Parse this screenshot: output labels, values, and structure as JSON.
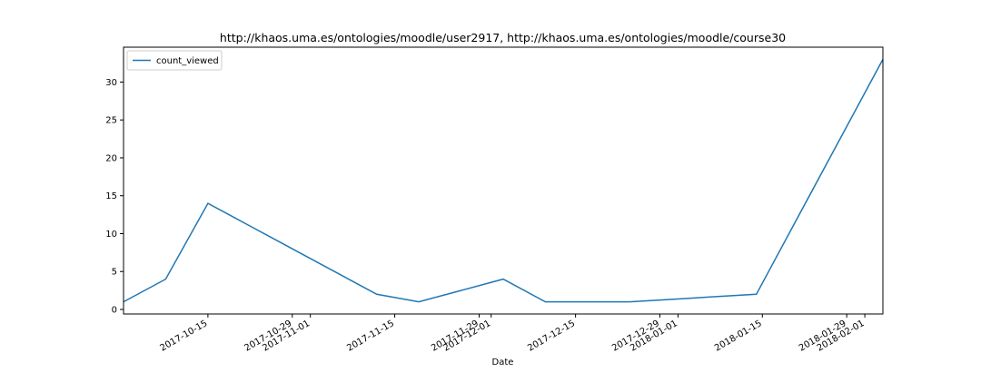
{
  "chart_data": {
    "type": "line",
    "title": "http://khaos.uma.es/ontologies/moodle/user2917, http://khaos.uma.es/ontologies/moodle/course30",
    "xlabel": "Date",
    "ylabel": "",
    "x_type": "date",
    "xlim": [
      "2017-10-01",
      "2018-02-04"
    ],
    "ylim": [
      -0.6,
      34.6
    ],
    "x_ticks": [
      "2017-10-15",
      "2017-10-29",
      "2017-11-01",
      "2017-11-15",
      "2017-11-29",
      "2017-12-01",
      "2017-12-15",
      "2017-12-29",
      "2018-01-01",
      "2018-01-15",
      "2018-01-29",
      "2018-02-01"
    ],
    "y_ticks": [
      0,
      5,
      10,
      15,
      20,
      25,
      30
    ],
    "grid": false,
    "legend_position": "upper left",
    "series": [
      {
        "name": "count_viewed",
        "color": "#1f77b4",
        "x": [
          "2017-10-01",
          "2017-10-08",
          "2017-10-15",
          "2017-10-22",
          "2017-10-29",
          "2017-11-05",
          "2017-11-12",
          "2017-11-19",
          "2017-11-26",
          "2017-12-03",
          "2017-12-10",
          "2017-12-17",
          "2017-12-24",
          "2017-12-31",
          "2018-01-07",
          "2018-01-14",
          "2018-01-21",
          "2018-01-28",
          "2018-02-04"
        ],
        "values": [
          1,
          4,
          14,
          11,
          8,
          5,
          2,
          1,
          2.5,
          4,
          1,
          1,
          1,
          1.33,
          1.67,
          2,
          12.33,
          22.67,
          33
        ]
      }
    ]
  }
}
